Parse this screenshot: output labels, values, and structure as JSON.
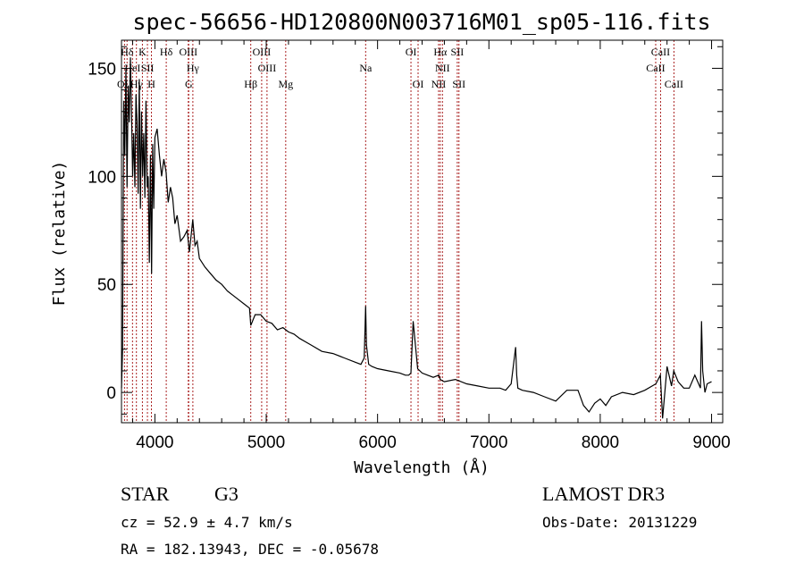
{
  "chart_data": {
    "type": "line",
    "title": "spec-56656-HD120800N003716M01_sp05-116.fits",
    "xlabel": "Wavelength (Å)",
    "ylabel": "Flux (relative)",
    "xlim": [
      3700,
      9100
    ],
    "ylim": [
      -14,
      163
    ],
    "x_ticks": [
      4000,
      5000,
      6000,
      7000,
      8000,
      9000
    ],
    "x_tick_labels": [
      "4000",
      "5000",
      "6000",
      "7000",
      "8000",
      "9000"
    ],
    "y_ticks": [
      0,
      50,
      100,
      150
    ],
    "y_tick_labels": [
      "0",
      "50",
      "100",
      "150"
    ],
    "grid": false,
    "legend": "none",
    "line_color": "#000000",
    "marker_color": "#aa2222",
    "series": [
      {
        "x": [
          3700,
          3710,
          3720,
          3730,
          3740,
          3750,
          3760,
          3770,
          3780,
          3790,
          3800,
          3810,
          3820,
          3830,
          3840,
          3850,
          3860,
          3870,
          3880,
          3890,
          3900,
          3910,
          3920,
          3930,
          3940,
          3950,
          3960,
          3970,
          3980,
          3990,
          4000,
          4020,
          4040,
          4060,
          4080,
          4100,
          4120,
          4140,
          4160,
          4180,
          4200,
          4230,
          4260,
          4290,
          4310,
          4340,
          4360,
          4380,
          4400,
          4450,
          4500,
          4550,
          4600,
          4650,
          4700,
          4750,
          4800,
          4850,
          4861,
          4900,
          4950,
          5000,
          5050,
          5100,
          5150,
          5200,
          5250,
          5300,
          5400,
          5500,
          5600,
          5700,
          5800,
          5850,
          5880,
          5893,
          5900,
          5920,
          5950,
          6000,
          6100,
          6200,
          6250,
          6280,
          6300,
          6320,
          6360,
          6400,
          6450,
          6500,
          6550,
          6563,
          6600,
          6700,
          6800,
          6900,
          7000,
          7100,
          7150,
          7200,
          7240,
          7250,
          7260,
          7300,
          7400,
          7500,
          7600,
          7700,
          7800,
          7850,
          7900,
          7950,
          8000,
          8050,
          8100,
          8200,
          8300,
          8400,
          8500,
          8540,
          8560,
          8600,
          8640,
          8660,
          8700,
          8750,
          8800,
          8850,
          8900,
          8910,
          8920,
          8940,
          8960,
          9000
        ],
        "y": [
          2,
          20,
          135,
          110,
          150,
          95,
          142,
          125,
          155,
          130,
          100,
          120,
          95,
          138,
          125,
          92,
          145,
          85,
          130,
          100,
          120,
          90,
          135,
          95,
          100,
          60,
          110,
          55,
          115,
          85,
          118,
          122,
          110,
          100,
          108,
          102,
          88,
          95,
          90,
          78,
          82,
          70,
          72,
          75,
          65,
          80,
          68,
          70,
          62,
          58,
          55,
          52,
          50,
          47,
          45,
          43,
          41,
          39,
          31,
          36,
          36,
          33,
          32,
          29,
          30,
          28,
          27,
          25,
          22,
          19,
          18,
          16,
          14,
          13,
          16,
          40,
          22,
          13,
          12,
          11,
          10,
          9,
          8,
          8,
          9,
          33,
          11,
          9,
          8,
          7,
          8,
          6,
          5,
          6,
          4,
          3,
          2,
          2,
          1,
          4,
          21,
          8,
          2,
          1,
          0,
          -2,
          -4,
          1,
          1,
          -6,
          -9,
          -5,
          -3,
          -6,
          -2,
          0,
          -1,
          1,
          4,
          8,
          -12,
          12,
          3,
          10,
          5,
          2,
          2,
          8,
          2,
          33,
          10,
          0,
          4,
          5
        ]
      }
    ],
    "annotations": {
      "lines": [
        {
          "label": "Hδ",
          "x": 3750,
          "row": 0
        },
        {
          "label": "OII",
          "x": 3727,
          "row": 2
        },
        {
          "label": "HeI",
          "x": 3799,
          "row": 1
        },
        {
          "label": "Hγ",
          "x": 3834,
          "row": 2
        },
        {
          "label": "K",
          "x": 3888,
          "row": 0
        },
        {
          "label": "SII",
          "x": 3933,
          "row": 1
        },
        {
          "label": "H",
          "x": 3969,
          "row": 2
        },
        {
          "label": "Hδ",
          "x": 4102,
          "row": 0
        },
        {
          "label": "OIII",
          "x": 4300,
          "row": 0
        },
        {
          "label": "Hγ",
          "x": 4341,
          "row": 1
        },
        {
          "label": "G",
          "x": 4304,
          "row": 2
        },
        {
          "label": "OIII",
          "x": 4959,
          "row": 0
        },
        {
          "label": "OIII",
          "x": 5007,
          "row": 1
        },
        {
          "label": "Hβ",
          "x": 4861,
          "row": 2
        },
        {
          "label": "Mg",
          "x": 5175,
          "row": 2
        },
        {
          "label": "Na",
          "x": 5893,
          "row": 1
        },
        {
          "label": "OI",
          "x": 6300,
          "row": 0
        },
        {
          "label": "OI",
          "x": 6364,
          "row": 2
        },
        {
          "label": "Hα",
          "x": 6563,
          "row": 0
        },
        {
          "label": "NII",
          "x": 6583,
          "row": 1
        },
        {
          "label": "NII",
          "x": 6548,
          "row": 2
        },
        {
          "label": "SII",
          "x": 6716,
          "row": 0
        },
        {
          "label": "SII",
          "x": 6731,
          "row": 2
        },
        {
          "label": "CaII",
          "x": 8542,
          "row": 0
        },
        {
          "label": "CaII",
          "x": 8498,
          "row": 1
        },
        {
          "label": "CaII",
          "x": 8662,
          "row": 2
        }
      ]
    }
  },
  "info": {
    "class": "STAR",
    "subclass": "G3",
    "survey": "LAMOST DR3",
    "cz": "cz = 52.9 ± 4.7 km/s",
    "obsdate": "Obs-Date: 20131229",
    "radec": "RA = 182.13943, DEC =  -0.05678"
  }
}
